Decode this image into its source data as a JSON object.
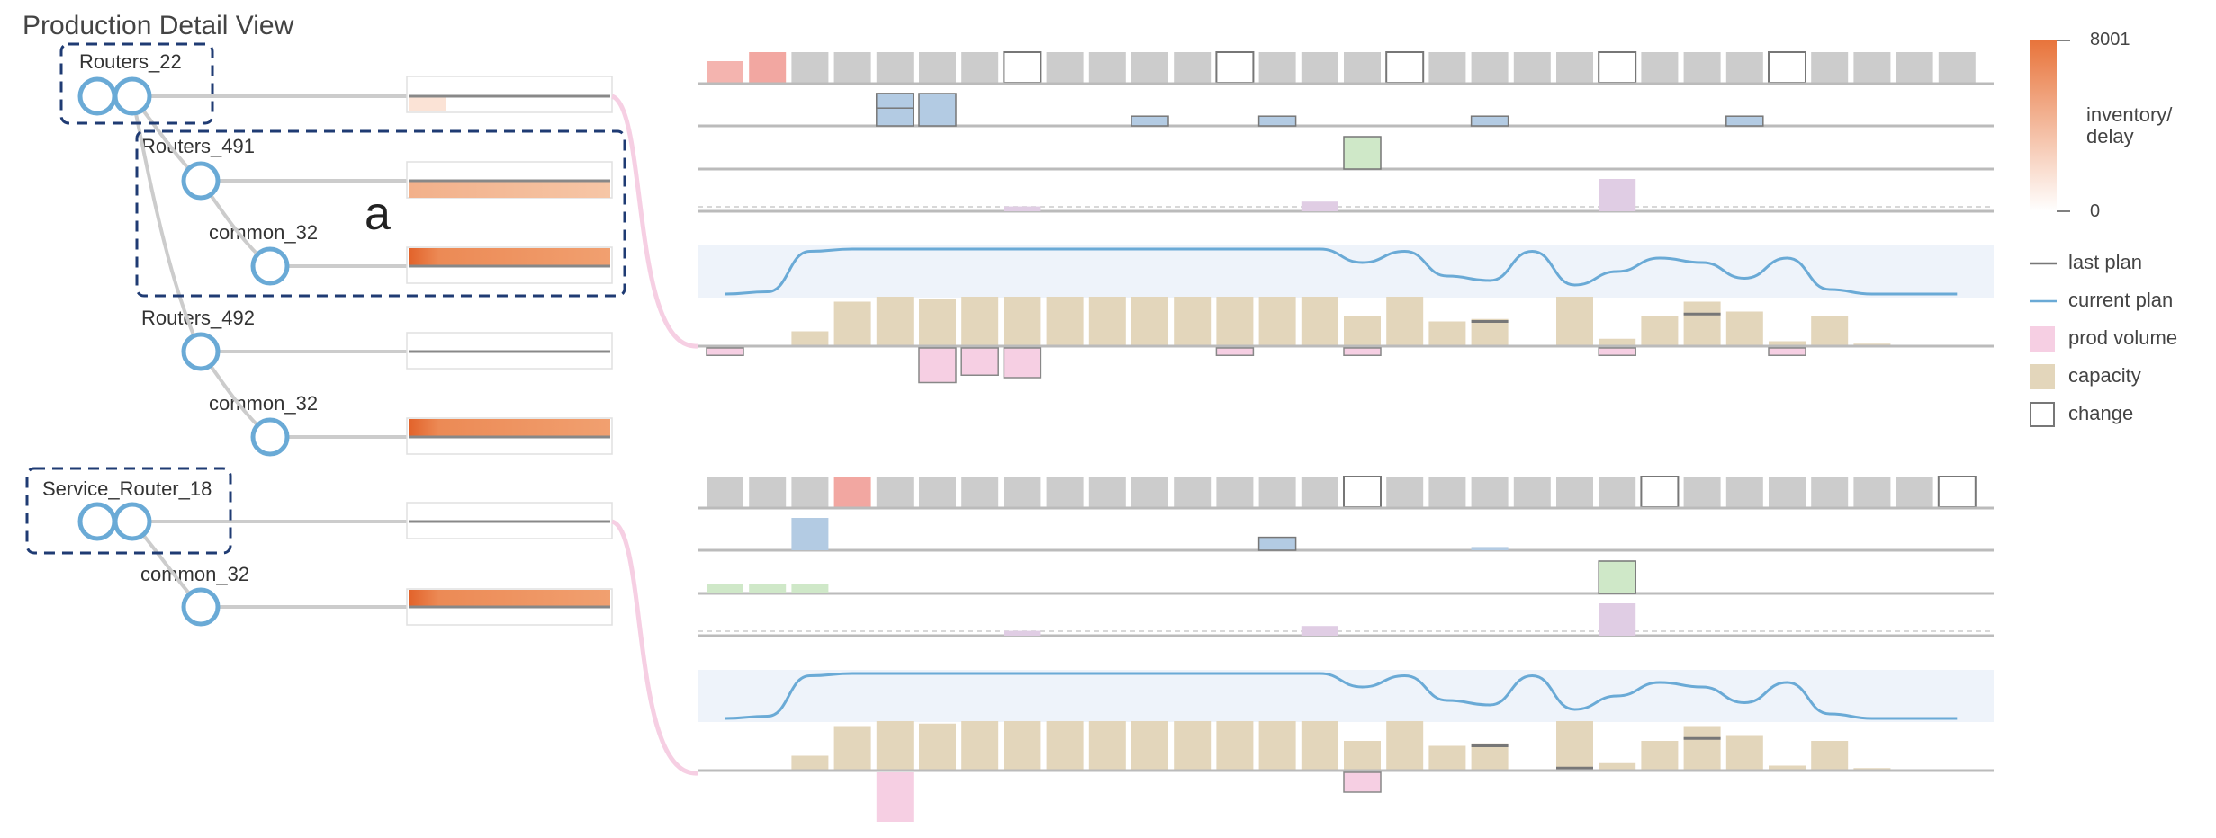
{
  "title": "Production Detail View",
  "annotation": "a",
  "colors": {
    "inventory_high": "#e8743b",
    "inventory_low": "#ffffff",
    "last_plan": "#777777",
    "current_plan": "#6aaad6",
    "prod_volume": "#f6cfe3",
    "capacity": "#e3d6bb",
    "change_border": "#777777",
    "tree_node": "#6aaad6",
    "tree_link": "#cccccc",
    "box_dash": "#1f3b73",
    "delay_red": "#f2a7a1",
    "plan_band": "#eef3fa",
    "bump_blue": "#b3cbe3",
    "bump_green": "#cfe8c8",
    "bump_purple": "#e0cde4",
    "row_gray": "#cccccc"
  },
  "tree": {
    "nodes": [
      {
        "label": "Routers_22"
      },
      {
        "label": "Routers_491"
      },
      {
        "label": "common_32"
      },
      {
        "label": "Routers_492"
      },
      {
        "label": "common_32"
      },
      {
        "label": "Service_Router_18"
      },
      {
        "label": "common_32"
      }
    ]
  },
  "legend": {
    "colorbar_max": "8001",
    "colorbar_min": "0",
    "colorbar_title_line1": "inventory/",
    "colorbar_title_line2": "delay",
    "items": [
      "last plan",
      "current plan",
      "prod volume",
      "capacity",
      "change"
    ]
  },
  "chart_data": [
    {
      "type": "bar",
      "name": "Routers_22 detail",
      "periods": 30,
      "status_cells": [
        "red-light",
        "red",
        "gray",
        "gray",
        "gray",
        "gray",
        "gray",
        "change",
        "gray",
        "gray",
        "gray",
        "gray",
        "change",
        "gray",
        "gray",
        "gray",
        "change",
        "gray",
        "gray",
        "gray",
        "gray",
        "change",
        "gray",
        "gray",
        "gray",
        "change",
        "gray",
        "gray",
        "gray",
        "gray"
      ],
      "current_plan": [
        0,
        0.05,
        0.95,
        1,
        1,
        1,
        1,
        1,
        1,
        1,
        1,
        1,
        1,
        1,
        1,
        0.7,
        0.95,
        0.4,
        0.3,
        0.95,
        0.2,
        0.5,
        0.8,
        0.7,
        0.35,
        0.8,
        0.1,
        0,
        0,
        0
      ],
      "capacity": [
        0,
        0,
        0.3,
        0.9,
        1,
        0.95,
        1,
        1,
        1,
        1,
        1,
        1,
        1,
        1,
        1,
        0.6,
        1,
        0.5,
        0.55,
        0,
        1,
        0.15,
        0.6,
        0.9,
        0.7,
        0.1,
        0.6,
        0.05,
        0,
        0
      ],
      "last_plan_marks": [
        null,
        null,
        null,
        null,
        null,
        null,
        null,
        null,
        null,
        null,
        null,
        null,
        null,
        null,
        null,
        null,
        null,
        null,
        0.5,
        null,
        null,
        null,
        null,
        0.65,
        null,
        null,
        null,
        null,
        null,
        null
      ],
      "prod_volume_below": [
        0.15,
        0,
        0,
        0,
        0,
        0.7,
        0.55,
        0.6,
        0,
        0,
        0,
        0,
        0.15,
        0,
        0,
        0.15,
        0,
        0,
        0,
        0,
        0,
        0.15,
        0,
        0,
        0,
        0.15,
        0,
        0,
        0,
        0
      ]
    },
    {
      "type": "bar",
      "name": "Service_Router_18 detail",
      "periods": 30,
      "status_cells": [
        "gray",
        "gray",
        "gray",
        "red",
        "gray",
        "gray",
        "gray",
        "gray",
        "gray",
        "gray",
        "gray",
        "gray",
        "gray",
        "gray",
        "gray",
        "change",
        "gray",
        "gray",
        "gray",
        "gray",
        "gray",
        "gray",
        "change",
        "gray",
        "gray",
        "gray",
        "gray",
        "gray",
        "gray",
        "change"
      ],
      "current_plan": [
        0,
        0.05,
        0.95,
        1,
        1,
        1,
        1,
        1,
        1,
        1,
        1,
        1,
        1,
        1,
        1,
        0.7,
        0.95,
        0.4,
        0.3,
        0.95,
        0.2,
        0.5,
        0.8,
        0.7,
        0.35,
        0.8,
        0.1,
        0,
        0,
        0
      ],
      "capacity": [
        0,
        0,
        0.3,
        0.9,
        1,
        0.95,
        1,
        1,
        1,
        1,
        1,
        1,
        1,
        1,
        1,
        0.6,
        1,
        0.5,
        0.55,
        0,
        1,
        0.15,
        0.6,
        0.9,
        0.7,
        0.1,
        0.6,
        0.05,
        0,
        0
      ],
      "last_plan_marks": [
        null,
        null,
        null,
        null,
        null,
        null,
        null,
        null,
        null,
        null,
        null,
        null,
        null,
        null,
        null,
        null,
        null,
        null,
        0.5,
        null,
        0.05,
        null,
        null,
        0.65,
        null,
        null,
        null,
        null,
        null,
        null
      ],
      "prod_volume_below": [
        0,
        0,
        0,
        0,
        1,
        0,
        0,
        0,
        0,
        0,
        0,
        0,
        0,
        0,
        0,
        0.4,
        0,
        0,
        0,
        0,
        0,
        0,
        0,
        0,
        0,
        0,
        0,
        0,
        0,
        0
      ]
    }
  ]
}
